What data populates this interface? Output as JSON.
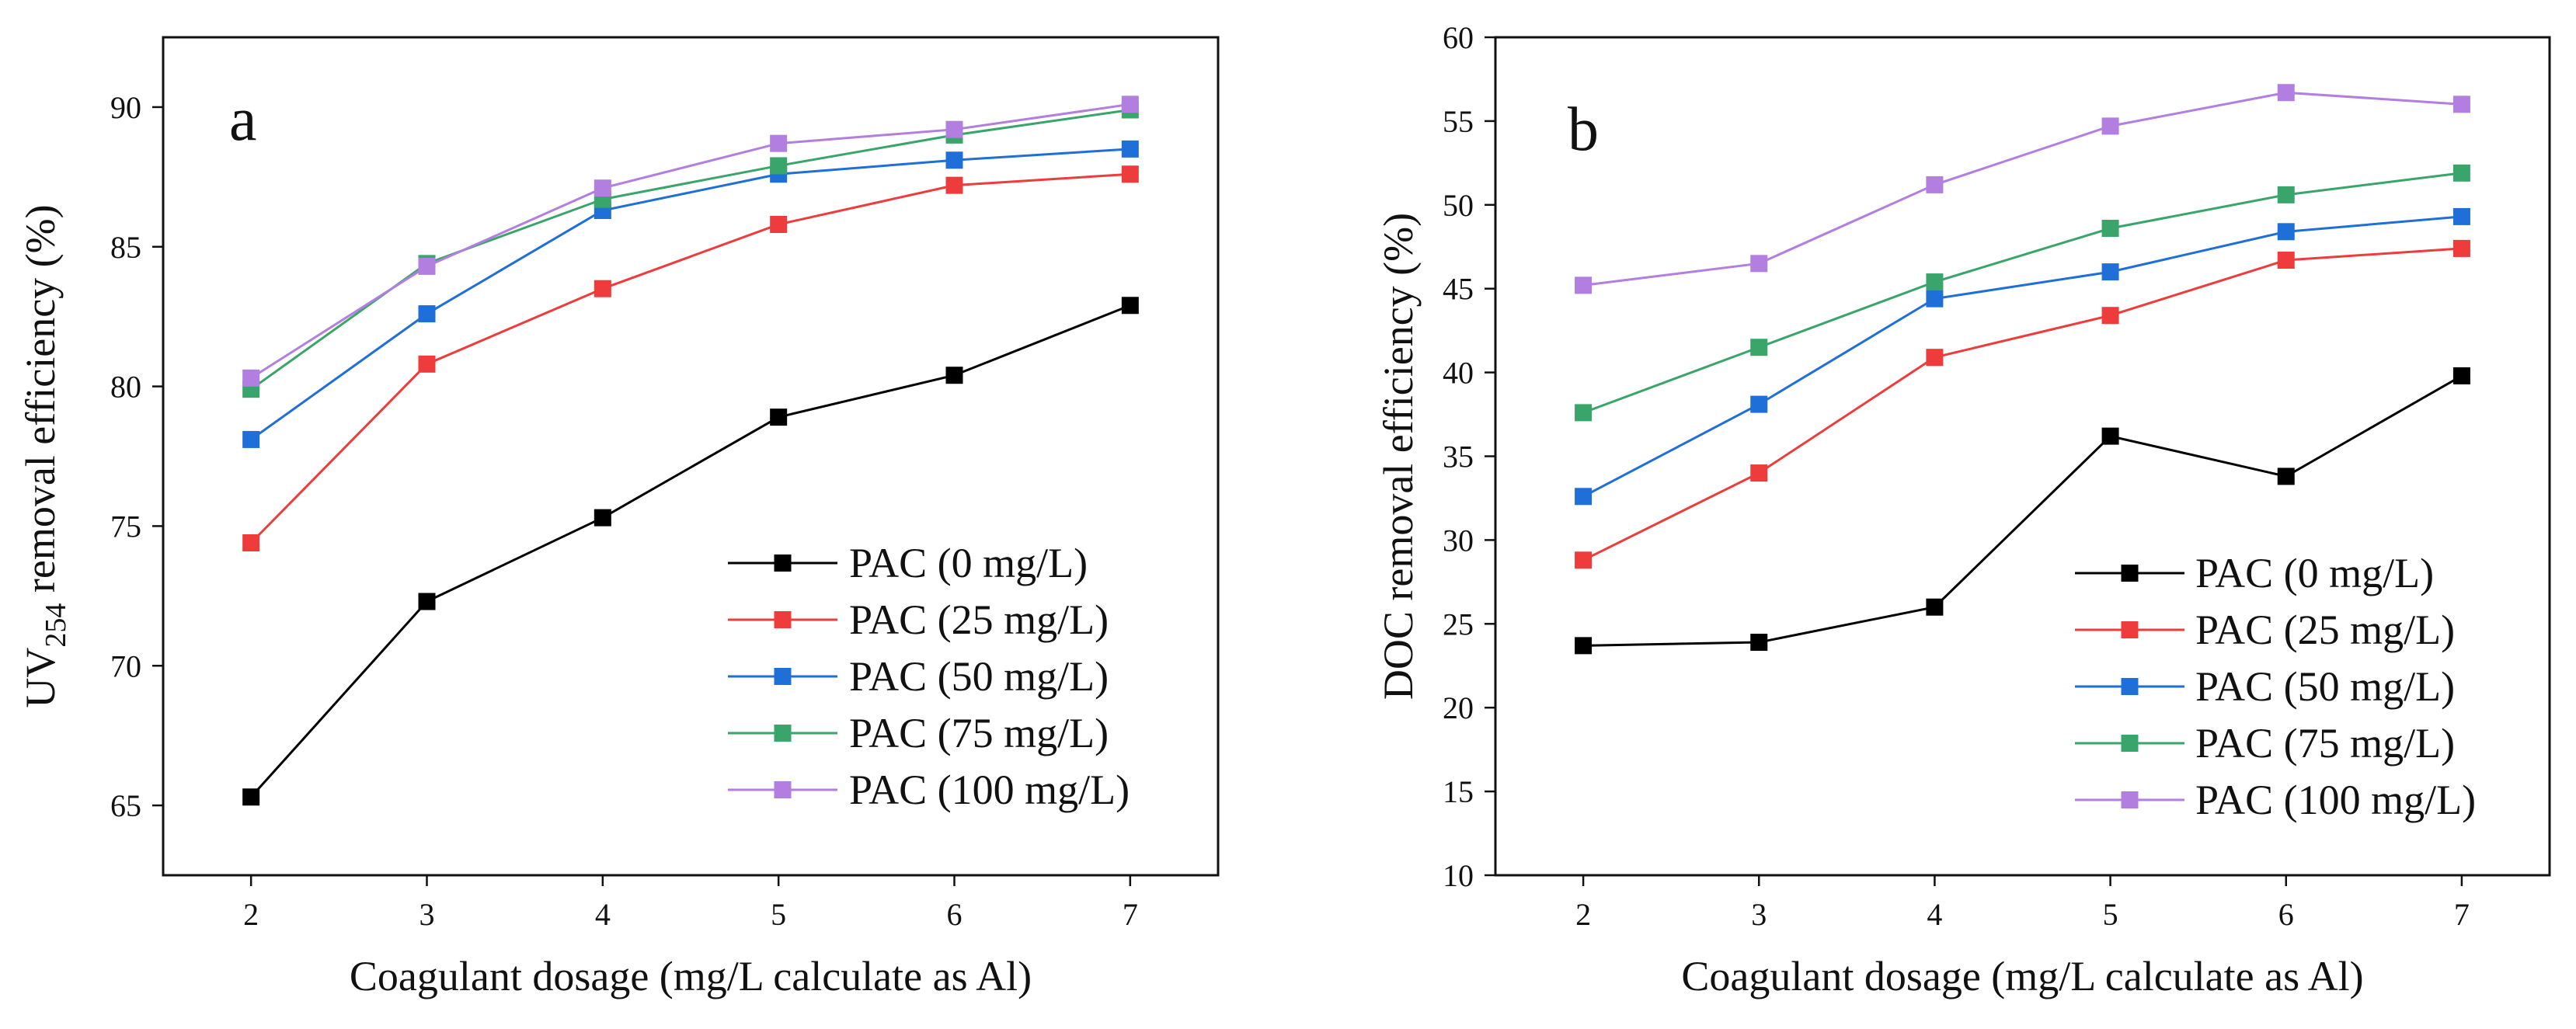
{
  "chart_data": [
    {
      "type": "line",
      "panel_label": "a",
      "xlabel": "Coagulant dosage (mg/L calculate as Al)",
      "ylabel_main": "UV",
      "ylabel_subscript": "254",
      "ylabel_rest": " removal efficiency (%)",
      "x": [
        2,
        3,
        4,
        5,
        6,
        7
      ],
      "x_tick_labels": [
        "2",
        "3",
        "4",
        "5",
        "6",
        "7"
      ],
      "xlim": [
        1.5,
        7.5
      ],
      "y_ticks": [
        65,
        70,
        75,
        80,
        85,
        90
      ],
      "y_tick_labels": [
        "65",
        "70",
        "75",
        "80",
        "85",
        "90"
      ],
      "ylim": [
        62.5,
        92.5
      ],
      "grid": false,
      "legend_position": "bottom-right",
      "series": [
        {
          "name": "PAC (0 mg/L)",
          "color": "#000000",
          "values": [
            65.3,
            72.3,
            75.3,
            78.9,
            80.4,
            82.9
          ]
        },
        {
          "name": "PAC (25 mg/L)",
          "color": "#ee3b3b",
          "values": [
            74.4,
            80.8,
            83.5,
            85.8,
            87.2,
            87.6
          ]
        },
        {
          "name": "PAC (50 mg/L)",
          "color": "#1f6fd8",
          "values": [
            78.1,
            82.6,
            86.3,
            87.6,
            88.1,
            88.5
          ]
        },
        {
          "name": "PAC (75 mg/L)",
          "color": "#3aa56a",
          "values": [
            79.9,
            84.4,
            86.7,
            87.9,
            89.0,
            89.9
          ]
        },
        {
          "name": "PAC (100 mg/L)",
          "color": "#b27ee0",
          "values": [
            80.3,
            84.3,
            87.1,
            88.7,
            89.2,
            90.1
          ]
        }
      ]
    },
    {
      "type": "line",
      "panel_label": "b",
      "xlabel": "Coagulant dosage (mg/L calculate as Al)",
      "ylabel_main": "DOC removal efficiency (%)",
      "ylabel_subscript": "",
      "ylabel_rest": "",
      "x": [
        2,
        3,
        4,
        5,
        6,
        7
      ],
      "x_tick_labels": [
        "2",
        "3",
        "4",
        "5",
        "6",
        "7"
      ],
      "xlim": [
        1.5,
        7.5
      ],
      "y_ticks": [
        10,
        15,
        20,
        25,
        30,
        35,
        40,
        45,
        50,
        55,
        60
      ],
      "y_tick_labels": [
        "10",
        "15",
        "20",
        "25",
        "30",
        "35",
        "40",
        "45",
        "50",
        "55",
        "60"
      ],
      "ylim": [
        10,
        60
      ],
      "grid": false,
      "legend_position": "bottom-right",
      "series": [
        {
          "name": "PAC (0 mg/L)",
          "color": "#000000",
          "values": [
            23.7,
            23.9,
            26.0,
            36.2,
            33.8,
            39.8
          ]
        },
        {
          "name": "PAC (25 mg/L)",
          "color": "#ee3b3b",
          "values": [
            28.8,
            34.0,
            40.9,
            43.4,
            46.7,
            47.4
          ]
        },
        {
          "name": "PAC (50 mg/L)",
          "color": "#1f6fd8",
          "values": [
            32.6,
            38.1,
            44.4,
            46.0,
            48.4,
            49.3
          ]
        },
        {
          "name": "PAC (75 mg/L)",
          "color": "#3aa56a",
          "values": [
            37.6,
            41.5,
            45.4,
            48.6,
            50.6,
            51.9
          ]
        },
        {
          "name": "PAC (100 mg/L)",
          "color": "#b27ee0",
          "values": [
            45.2,
            46.5,
            51.2,
            54.7,
            56.7,
            56.0
          ]
        }
      ]
    }
  ]
}
